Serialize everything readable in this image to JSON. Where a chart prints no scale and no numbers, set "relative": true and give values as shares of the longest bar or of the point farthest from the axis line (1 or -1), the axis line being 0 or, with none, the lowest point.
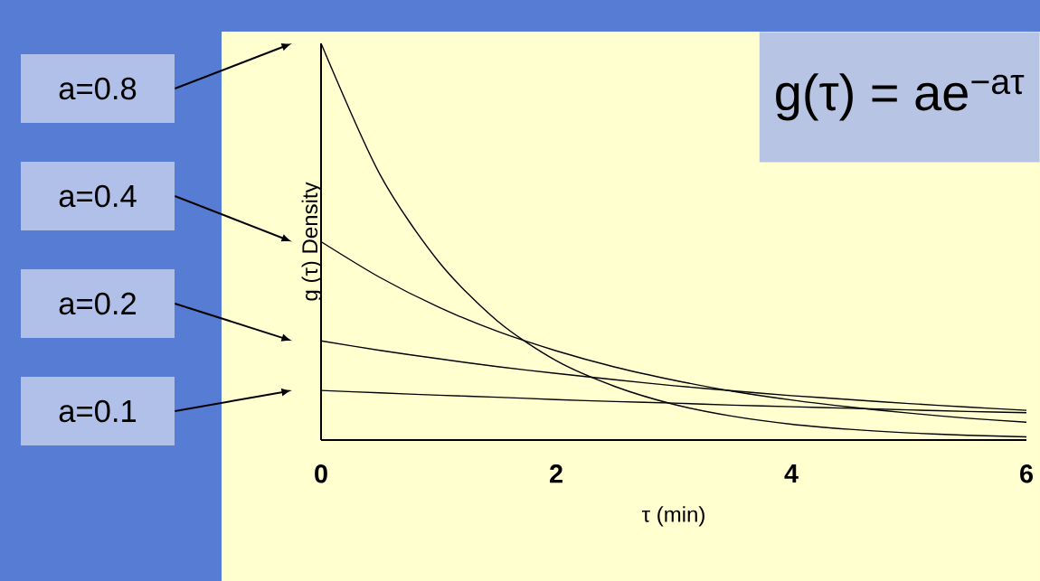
{
  "chart_data": {
    "type": "line",
    "relative": true,
    "legend": "left",
    "xlabel": "τ (min)",
    "ylabel": "g (τ) Density",
    "annotations": [
      "g(τ) = ae$^{−aτ}$"
    ],
    "x": [
      0,
      0.5,
      1,
      1.5,
      2,
      2.5,
      3,
      3.5,
      4,
      4.5,
      5,
      5.5,
      6
    ],
    "xlim": [
      0,
      6
    ],
    "xticks": [
      0,
      2,
      4,
      6
    ],
    "series": [
      {
        "name": "a=0.8",
        "color": "#000000",
        "values": [
          1,
          0.67,
          0.45,
          0.3,
          0.2,
          0.135,
          0.09,
          0.06,
          0.04,
          0.027,
          0.018,
          0.012,
          0.008
        ]
      },
      {
        "name": "a=0.4",
        "color": "#000000",
        "values": [
          0.5,
          0.41,
          0.335,
          0.274,
          0.225,
          0.184,
          0.151,
          0.123,
          0.101,
          0.083,
          0.068,
          0.055,
          0.045
        ]
      },
      {
        "name": "a=0.2",
        "color": "#000000",
        "values": [
          0.25,
          0.226,
          0.205,
          0.185,
          0.168,
          0.152,
          0.137,
          0.124,
          0.112,
          0.102,
          0.092,
          0.083,
          0.075
        ]
      },
      {
        "name": "a=0.1",
        "color": "#000000",
        "values": [
          0.125,
          0.119,
          0.113,
          0.108,
          0.102,
          0.097,
          0.093,
          0.088,
          0.084,
          0.08,
          0.076,
          0.072,
          0.069
        ]
      }
    ]
  }
}
